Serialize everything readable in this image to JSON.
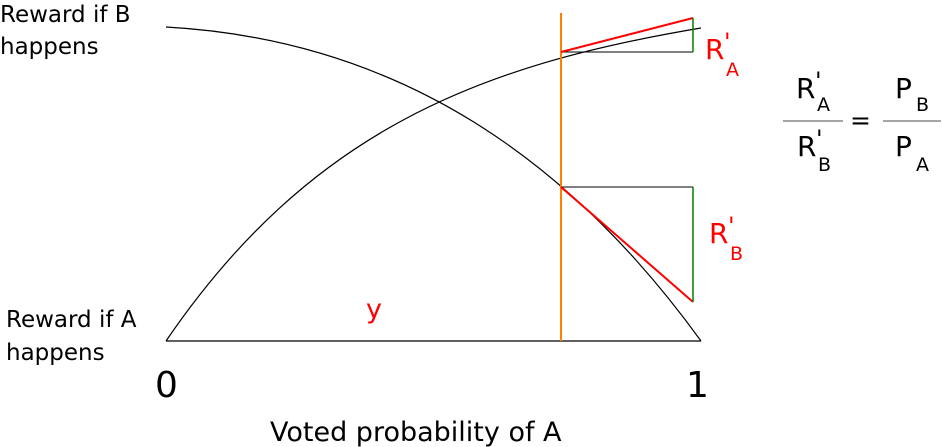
{
  "labels": {
    "reward_b_line1": "Reward if B",
    "reward_b_line2": "happens",
    "reward_a_line1": "Reward if A",
    "reward_a_line2": "happens",
    "x_axis_zero": "0",
    "x_axis_one": "1",
    "x_axis_title": "Voted probability of A",
    "y_marker": "y"
  },
  "annotations": {
    "ra": {
      "main": "R",
      "prime": "'",
      "sub": "A"
    },
    "rb": {
      "main": "R",
      "prime": "'",
      "sub": "B"
    }
  },
  "equation": {
    "lhs_num": {
      "main": "R",
      "prime": "'",
      "sub": "A"
    },
    "lhs_den": {
      "main": "R",
      "prime": "'",
      "sub": "B"
    },
    "equals": "=",
    "rhs_num": {
      "main": "P",
      "sub": "B"
    },
    "rhs_den": {
      "main": "P",
      "sub": "A"
    }
  },
  "colors": {
    "curve": "#000000",
    "vertical_marker": "#ff8000",
    "tangent": "#ff0000",
    "delta": "#008000",
    "guide": "#000000",
    "fraction_bar": "#888888"
  }
}
